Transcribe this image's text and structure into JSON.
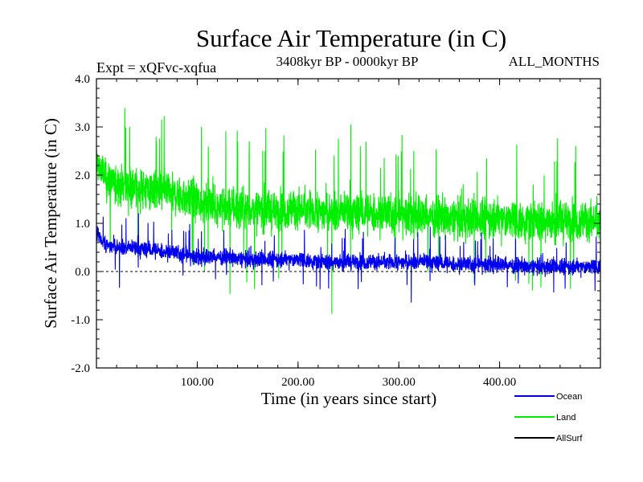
{
  "chart_data": {
    "type": "line",
    "title": "Surface Air Temperature (in C)",
    "subtitle": "3408kyr BP - 0000kyr BP",
    "expt_label": "Expt = xQFvc-xqfua",
    "months_label": "ALL_MONTHS",
    "xlabel": "Time (in years since start)",
    "ylabel": "Surface Air Temperature (in C)",
    "xlim": [
      0,
      500
    ],
    "ylim": [
      -2.0,
      4.0
    ],
    "xticks": [
      100,
      200,
      300,
      400
    ],
    "xtick_labels": [
      "100.00",
      "200.00",
      "300.00",
      "400.00"
    ],
    "yticks": [
      -2.0,
      -1.0,
      0.0,
      1.0,
      2.0,
      3.0,
      4.0
    ],
    "ytick_labels": [
      "-2.0",
      "-1.0",
      "0.0",
      "1.0",
      "2.0",
      "3.0",
      "4.0"
    ],
    "legend_position": "bottom-right",
    "series": [
      {
        "name": "Land",
        "color": "#00ee00",
        "noise": 0.55,
        "x": [
          0,
          10,
          25,
          50,
          75,
          100,
          125,
          150,
          175,
          200,
          225,
          250,
          275,
          300,
          325,
          350,
          375,
          400,
          425,
          450,
          475,
          500
        ],
        "values": [
          2.3,
          1.9,
          1.8,
          1.7,
          1.6,
          1.45,
          1.35,
          1.3,
          1.25,
          1.3,
          1.25,
          1.2,
          1.2,
          1.2,
          1.15,
          1.1,
          1.1,
          1.1,
          1.05,
          1.05,
          1.05,
          1.05
        ]
      },
      {
        "name": "Ocean",
        "color": "#0000ee",
        "noise": 0.22,
        "x": [
          0,
          10,
          25,
          50,
          75,
          100,
          125,
          150,
          175,
          200,
          225,
          250,
          275,
          300,
          325,
          350,
          375,
          400,
          425,
          450,
          475,
          500
        ],
        "values": [
          0.8,
          0.55,
          0.5,
          0.45,
          0.4,
          0.3,
          0.3,
          0.25,
          0.25,
          0.25,
          0.2,
          0.2,
          0.2,
          0.2,
          0.2,
          0.15,
          0.15,
          0.15,
          0.1,
          0.1,
          0.1,
          0.1
        ]
      },
      {
        "name": "AllSurf",
        "color": "#000000",
        "noise": 0.0,
        "x": [],
        "values": []
      }
    ]
  }
}
